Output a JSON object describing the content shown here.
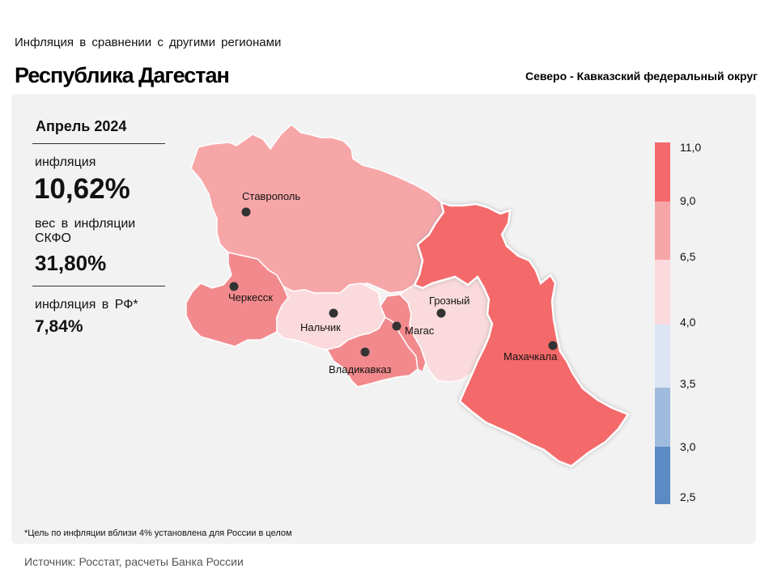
{
  "header": {
    "subtitle": "Инфляция в сравнении с другими регионами",
    "title": "Республика Дагестан",
    "district": "Северо - Кавказский федеральный округ"
  },
  "stats": {
    "period": "Апрель 2024",
    "inflation_label": "инфляция",
    "inflation_value": "10,62%",
    "weight_label": "вес в инфляции СКФО",
    "weight_value": "31,80%",
    "rf_label": "инфляция в РФ*",
    "rf_value": "7,84%"
  },
  "legend": {
    "labels": [
      "11,0",
      "9,0",
      "6,5",
      "4,0",
      "3,5",
      "3,0",
      "2,5"
    ],
    "colors": [
      "#f4696b",
      "#f7a6a8",
      "#fadadc",
      "#dbe5f3",
      "#9fbbdd",
      "#5b8ac4"
    ]
  },
  "regions": [
    {
      "name": "Ставрополь",
      "color": "#f7a6a8"
    },
    {
      "name": "Черкесск",
      "color": "#f28a8d"
    },
    {
      "name": "Нальчик",
      "color": "#fadadc"
    },
    {
      "name": "Владикавказ",
      "color": "#f28a8d"
    },
    {
      "name": "Магас",
      "color": "#f28a8d"
    },
    {
      "name": "Грозный",
      "color": "#fadadc"
    },
    {
      "name": "Махачкала",
      "color": "#f4696b"
    }
  ],
  "footnote": "*Цель по инфляции вблизи 4% установлена для России в целом",
  "source": "Источник: Росстат, расчеты Банка России"
}
